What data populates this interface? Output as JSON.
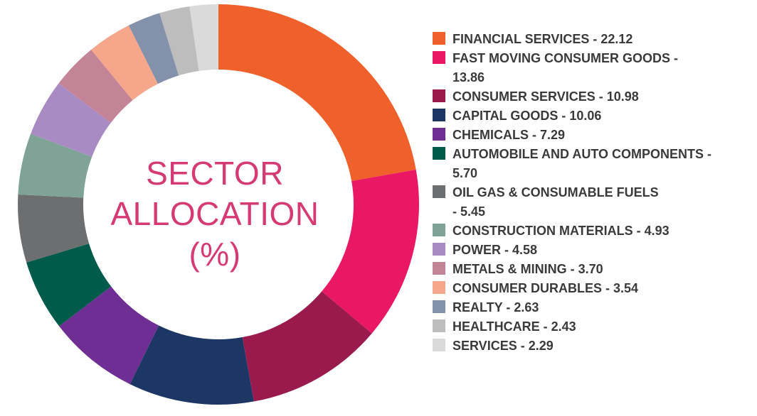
{
  "title_lines": [
    "SECTOR",
    "ALLOCATION",
    "(%)"
  ],
  "chart_data": {
    "type": "pie",
    "title": "SECTOR ALLOCATION (%)",
    "slices": [
      {
        "label": "FINANCIAL SERVICES",
        "value": 22.12,
        "color": "#f0602a",
        "legend_lines": [
          "FINANCIAL SERVICES - 22.12"
        ]
      },
      {
        "label": "FAST MOVING CONSUMER GOODS",
        "value": 13.86,
        "color": "#ea1864",
        "legend_lines": [
          "FAST MOVING CONSUMER GOODS -",
          "13.86"
        ]
      },
      {
        "label": "CONSUMER SERVICES",
        "value": 10.98,
        "color": "#9b1a4d",
        "legend_lines": [
          "CONSUMER SERVICES - 10.98"
        ]
      },
      {
        "label": "CAPITAL GOODS",
        "value": 10.06,
        "color": "#1d3764",
        "legend_lines": [
          "CAPITAL GOODS - 10.06"
        ]
      },
      {
        "label": "CHEMICALS",
        "value": 7.29,
        "color": "#6e2e94",
        "legend_lines": [
          "CHEMICALS - 7.29"
        ]
      },
      {
        "label": "AUTOMOBILE AND AUTO COMPONENTS",
        "value": 5.7,
        "color": "#005b4b",
        "legend_lines": [
          "AUTOMOBILE AND AUTO COMPONENTS -",
          "5.70"
        ]
      },
      {
        "label": "OIL GAS & CONSUMABLE FUELS",
        "value": 5.45,
        "color": "#6d6e70",
        "legend_lines": [
          "OIL GAS & CONSUMABLE FUELS",
          "- 5.45"
        ]
      },
      {
        "label": "CONSTRUCTION MATERIALS",
        "value": 4.93,
        "color": "#7fa497",
        "legend_lines": [
          "CONSTRUCTION MATERIALS - 4.93"
        ]
      },
      {
        "label": "POWER",
        "value": 4.58,
        "color": "#a98bc3",
        "legend_lines": [
          "POWER - 4.58"
        ]
      },
      {
        "label": "METALS & MINING",
        "value": 3.7,
        "color": "#c48498",
        "legend_lines": [
          "METALS & MINING - 3.70"
        ]
      },
      {
        "label": "CONSUMER DURABLES",
        "value": 3.54,
        "color": "#f6a68a",
        "legend_lines": [
          "CONSUMER DURABLES - 3.54"
        ]
      },
      {
        "label": "REALTY",
        "value": 2.63,
        "color": "#8391aa",
        "legend_lines": [
          "REALTY - 2.63"
        ]
      },
      {
        "label": "HEALTHCARE",
        "value": 2.43,
        "color": "#bdbdbd",
        "legend_lines": [
          "HEALTHCARE - 2.43"
        ]
      },
      {
        "label": "SERVICES",
        "value": 2.29,
        "color": "#dadada",
        "legend_lines": [
          "SERVICES - 2.29"
        ]
      }
    ],
    "legend_position": "right",
    "start_angle": "top",
    "direction": "clockwise"
  }
}
